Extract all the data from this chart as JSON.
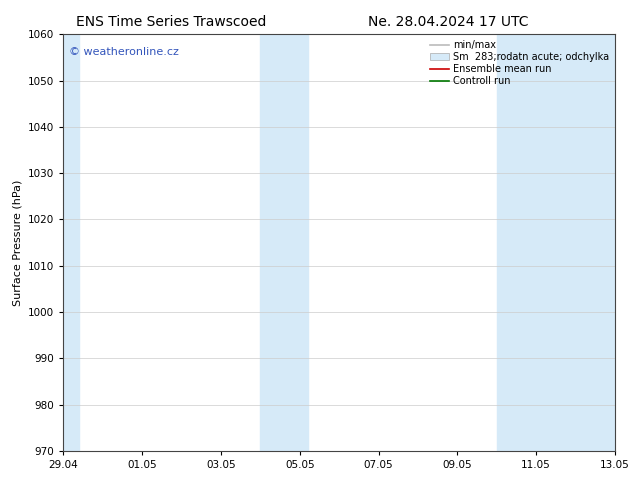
{
  "title_left": "ENS Time Series Trawscoed",
  "title_right": "Ne. 28.04.2024 17 UTC",
  "ylabel": "Surface Pressure (hPa)",
  "ylim": [
    970,
    1060
  ],
  "yticks": [
    970,
    980,
    990,
    1000,
    1010,
    1020,
    1030,
    1040,
    1050,
    1060
  ],
  "xlim_start": 0,
  "xlim_end": 14,
  "xtick_positions": [
    0,
    2,
    4,
    6,
    8,
    10,
    12,
    14
  ],
  "xtick_labels": [
    "29.04",
    "01.05",
    "03.05",
    "05.05",
    "07.05",
    "09.05",
    "11.05",
    "13.05"
  ],
  "shaded_bands": [
    {
      "xstart": 0.0,
      "xend": 0.4
    },
    {
      "xstart": 5.0,
      "xend": 6.2
    },
    {
      "xstart": 11.0,
      "xend": 14.0
    }
  ],
  "shade_color": "#d6eaf8",
  "watermark": "© weatheronline.cz",
  "watermark_color": "#3355bb",
  "legend_entries": [
    {
      "label": "min/max",
      "color": "#bbbbbb",
      "lw": 1.2
    },
    {
      "label": "Sm  283;rodatn acute; odchylka",
      "color": "#d6eaf8",
      "lw": 8
    },
    {
      "label": "Ensemble mean run",
      "color": "#cc0000",
      "lw": 1.2
    },
    {
      "label": "Controll run",
      "color": "#007700",
      "lw": 1.2
    }
  ],
  "bg_color": "#ffffff",
  "plot_bg_color": "#ffffff",
  "grid_color": "#cccccc",
  "title_fontsize": 10,
  "tick_fontsize": 7.5,
  "ylabel_fontsize": 8,
  "legend_fontsize": 7,
  "watermark_fontsize": 8
}
